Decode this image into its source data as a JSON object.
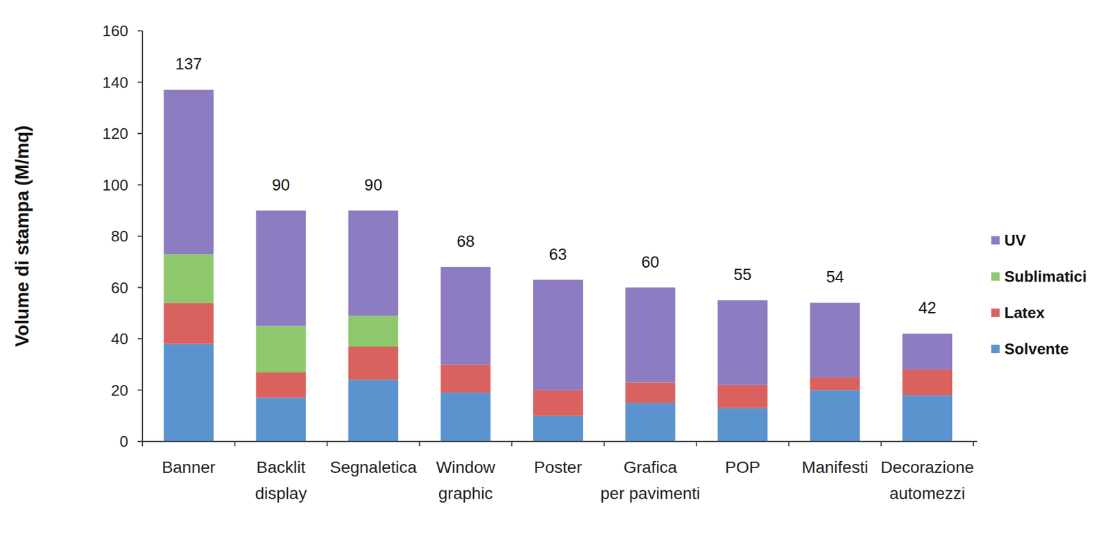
{
  "chart_data": {
    "type": "bar",
    "stacked": true,
    "y_label": "Volume di stampa (M/mq)",
    "categories": [
      "Banner",
      "Backlit display",
      "Segnaletica",
      "Window graphic",
      "Poster",
      "Grafica per pavimenti",
      "POP",
      "Manifesti",
      "Decorazione automezzi"
    ],
    "series": [
      {
        "name": "Solvente",
        "color": "#5b93cf",
        "values": [
          38,
          17,
          24,
          19,
          10,
          15,
          13,
          20,
          18
        ]
      },
      {
        "name": "Latex",
        "color": "#d9625f",
        "values": [
          16,
          10,
          13,
          11,
          10,
          8,
          9,
          5,
          10
        ]
      },
      {
        "name": "Sublimatici",
        "color": "#8dc96c",
        "values": [
          19,
          18,
          12,
          0,
          0,
          0,
          0,
          0,
          0
        ]
      },
      {
        "name": "UV",
        "color": "#8d7cc1",
        "values": [
          64,
          45,
          41,
          38,
          43,
          37,
          33,
          29,
          14
        ]
      }
    ],
    "totals": [
      137,
      90,
      90,
      68,
      63,
      60,
      55,
      54,
      42
    ],
    "ylim": [
      0,
      160
    ],
    "yticks": [
      0,
      20,
      40,
      60,
      80,
      100,
      120,
      140,
      160
    ],
    "grid": false,
    "legend": "right"
  }
}
